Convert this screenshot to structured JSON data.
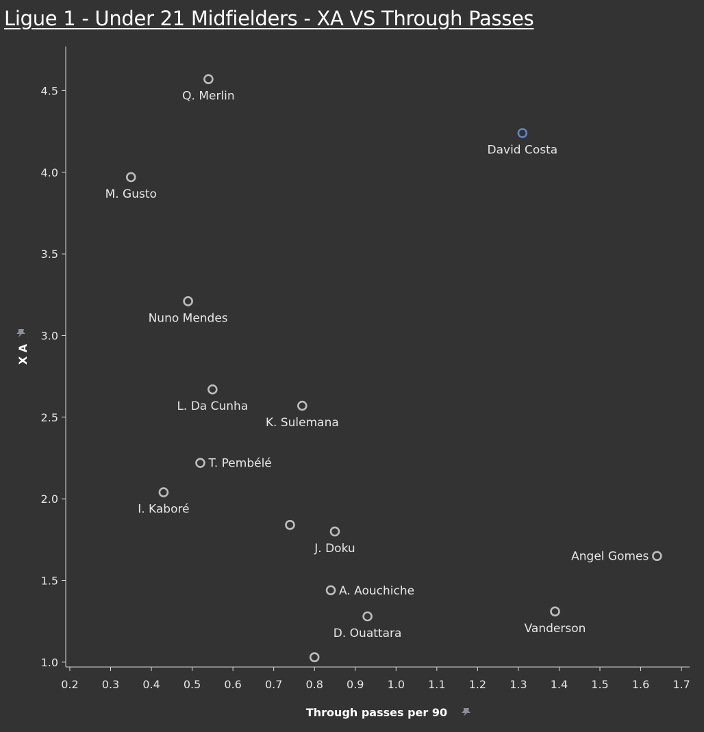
{
  "title": "Ligue 1 - Under 21 Midfielders - XA VS  Through Passes",
  "chart_data": {
    "type": "scatter",
    "title": "Ligue 1 - Under 21 Midfielders - XA VS  Through Passes",
    "xlabel": "Through passes per 90",
    "ylabel": "X A",
    "xlim": [
      0.19,
      1.72
    ],
    "ylim": [
      0.97,
      4.77
    ],
    "x_ticks": [
      0.2,
      0.3,
      0.4,
      0.5,
      0.6,
      0.7,
      0.8,
      0.9,
      1.0,
      1.1,
      1.2,
      1.3,
      1.4,
      1.5,
      1.6,
      1.7
    ],
    "x_tick_labels": [
      "0.2",
      "0.3",
      "0.4",
      "0.5",
      "0.6",
      "0.7",
      "0.8",
      "0.9",
      "1.0",
      "1.1",
      "1.2",
      "1.3",
      "1.4",
      "1.5",
      "1.6",
      "1.7"
    ],
    "y_ticks": [
      1.0,
      1.5,
      2.0,
      2.5,
      3.0,
      3.5,
      4.0,
      4.5
    ],
    "y_tick_labels": [
      "1.0",
      "1.5",
      "2.0",
      "2.5",
      "3.0",
      "3.5",
      "4.0",
      "4.5"
    ],
    "grid": false,
    "colors": {
      "default": "#bdbdbd",
      "highlight": "#5b87c3"
    },
    "points": [
      {
        "label": "Q. Merlin",
        "x": 0.54,
        "y": 4.57,
        "label_pos": "below"
      },
      {
        "label": "David Costa",
        "x": 1.31,
        "y": 4.24,
        "label_pos": "below",
        "highlight": true
      },
      {
        "label": "M. Gusto",
        "x": 0.35,
        "y": 3.97,
        "label_pos": "below"
      },
      {
        "label": "Nuno Mendes",
        "x": 0.49,
        "y": 3.21,
        "label_pos": "below"
      },
      {
        "label": "L. Da Cunha",
        "x": 0.55,
        "y": 2.67,
        "label_pos": "below"
      },
      {
        "label": "K. Sulemana",
        "x": 0.77,
        "y": 2.57,
        "label_pos": "below"
      },
      {
        "label": "T. Pembélé",
        "x": 0.52,
        "y": 2.22,
        "label_pos": "right"
      },
      {
        "label": "I. Kaboré",
        "x": 0.43,
        "y": 2.04,
        "label_pos": "below"
      },
      {
        "label": "",
        "x": 0.74,
        "y": 1.84,
        "label_pos": "none"
      },
      {
        "label": "J. Doku",
        "x": 0.85,
        "y": 1.8,
        "label_pos": "below"
      },
      {
        "label": "Angel Gomes",
        "x": 1.64,
        "y": 1.65,
        "label_pos": "left"
      },
      {
        "label": "A. Aouchiche",
        "x": 0.84,
        "y": 1.44,
        "label_pos": "right"
      },
      {
        "label": "Vanderson",
        "x": 1.39,
        "y": 1.31,
        "label_pos": "below"
      },
      {
        "label": "D. Ouattara",
        "x": 0.93,
        "y": 1.28,
        "label_pos": "below"
      },
      {
        "label": "",
        "x": 0.8,
        "y": 1.03,
        "label_pos": "none"
      }
    ]
  }
}
